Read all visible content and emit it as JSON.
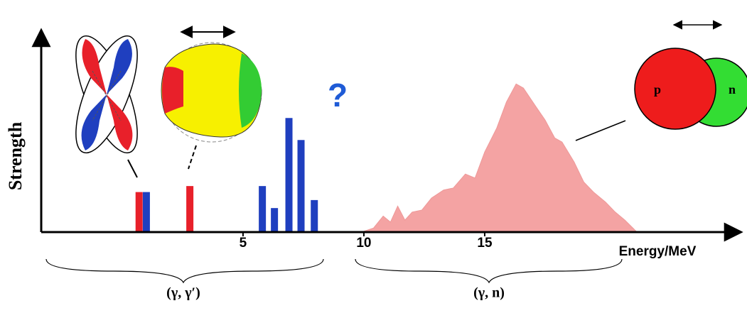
{
  "chart_data": {
    "type": "spectrum",
    "y_label": "Strength",
    "x_label": "Energy/MeV",
    "xlim": [
      -3.35,
      25.53
    ],
    "ylim": [
      0,
      10
    ],
    "xticks": [
      5,
      10,
      15
    ],
    "bars": [
      {
        "color": "#e8202a",
        "x": [
          0.7,
          2.8
        ],
        "values": [
          2.0,
          2.3
        ]
      },
      {
        "color": "#1f3fbf",
        "x": [
          1.0,
          5.8,
          6.3,
          6.9,
          7.4,
          7.95
        ],
        "values": [
          2.0,
          2.3,
          1.2,
          5.7,
          4.6,
          1.6
        ]
      }
    ],
    "area": {
      "color": "#f4a3a3",
      "x": [
        9.9,
        10.4,
        10.8,
        11.1,
        11.4,
        11.7,
        12.0,
        12.4,
        12.8,
        13.3,
        13.7,
        14.2,
        14.6,
        15.0,
        15.5,
        15.9,
        16.3,
        16.6,
        17.1,
        17.5,
        17.9,
        18.2,
        18.7,
        19.1,
        19.5,
        20.0,
        20.4,
        20.8,
        21.3
      ],
      "values": [
        0,
        0.2,
        0.8,
        0.5,
        1.3,
        0.6,
        1.0,
        1.1,
        1.7,
        2.1,
        2.2,
        2.9,
        2.7,
        4.0,
        5.2,
        6.5,
        7.4,
        7.2,
        6.3,
        5.6,
        4.7,
        4.5,
        3.5,
        2.5,
        2.0,
        1.5,
        1.0,
        0.6,
        0
      ]
    }
  },
  "annotations": {
    "question": "?",
    "region_1": "(γ, γ′)",
    "region_2": "(γ, n)",
    "proton": "p",
    "neutron": "n"
  }
}
